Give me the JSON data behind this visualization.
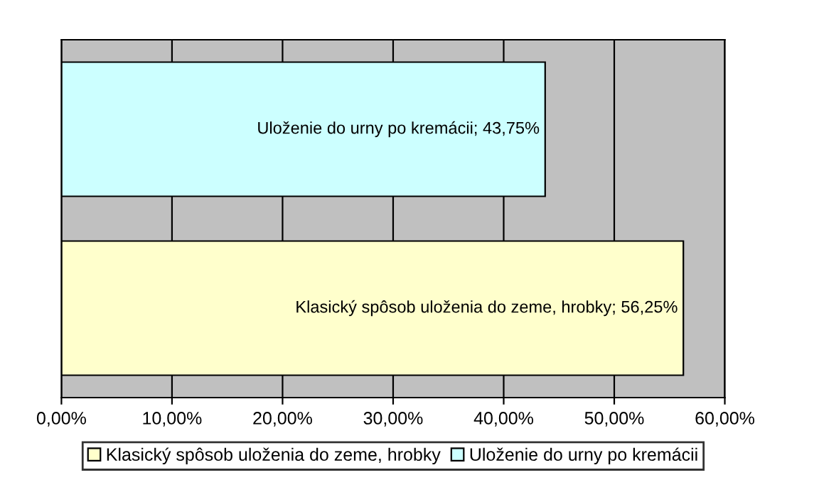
{
  "chart_data": {
    "type": "bar",
    "orientation": "horizontal",
    "categories": [
      null,
      null
    ],
    "series": [
      {
        "name": "Klasický spôsob uloženia do zeme, hrobky",
        "color": "#ffffcc",
        "values": [
          null,
          56.25
        ],
        "value_labels": [
          null,
          "Klasický spôsob uloženia do zeme, hrobky; 56,25%"
        ]
      },
      {
        "name": "Uloženie do urny po kremácii",
        "color": "#ccffff",
        "values": [
          43.75,
          null
        ],
        "value_labels": [
          "Uloženie do urny po kremácii; 43,75%",
          null
        ]
      }
    ],
    "xlim": [
      0,
      60
    ],
    "xticks": [
      {
        "value": 0,
        "label": "0,00%"
      },
      {
        "value": 10,
        "label": "10,00%"
      },
      {
        "value": 20,
        "label": "20,00%"
      },
      {
        "value": 30,
        "label": "30,00%"
      },
      {
        "value": 40,
        "label": "40,00%"
      },
      {
        "value": 50,
        "label": "50,00%"
      },
      {
        "value": 60,
        "label": "60,00%"
      }
    ],
    "tick_labels": "x",
    "grid": "x",
    "legend": "bottom"
  }
}
